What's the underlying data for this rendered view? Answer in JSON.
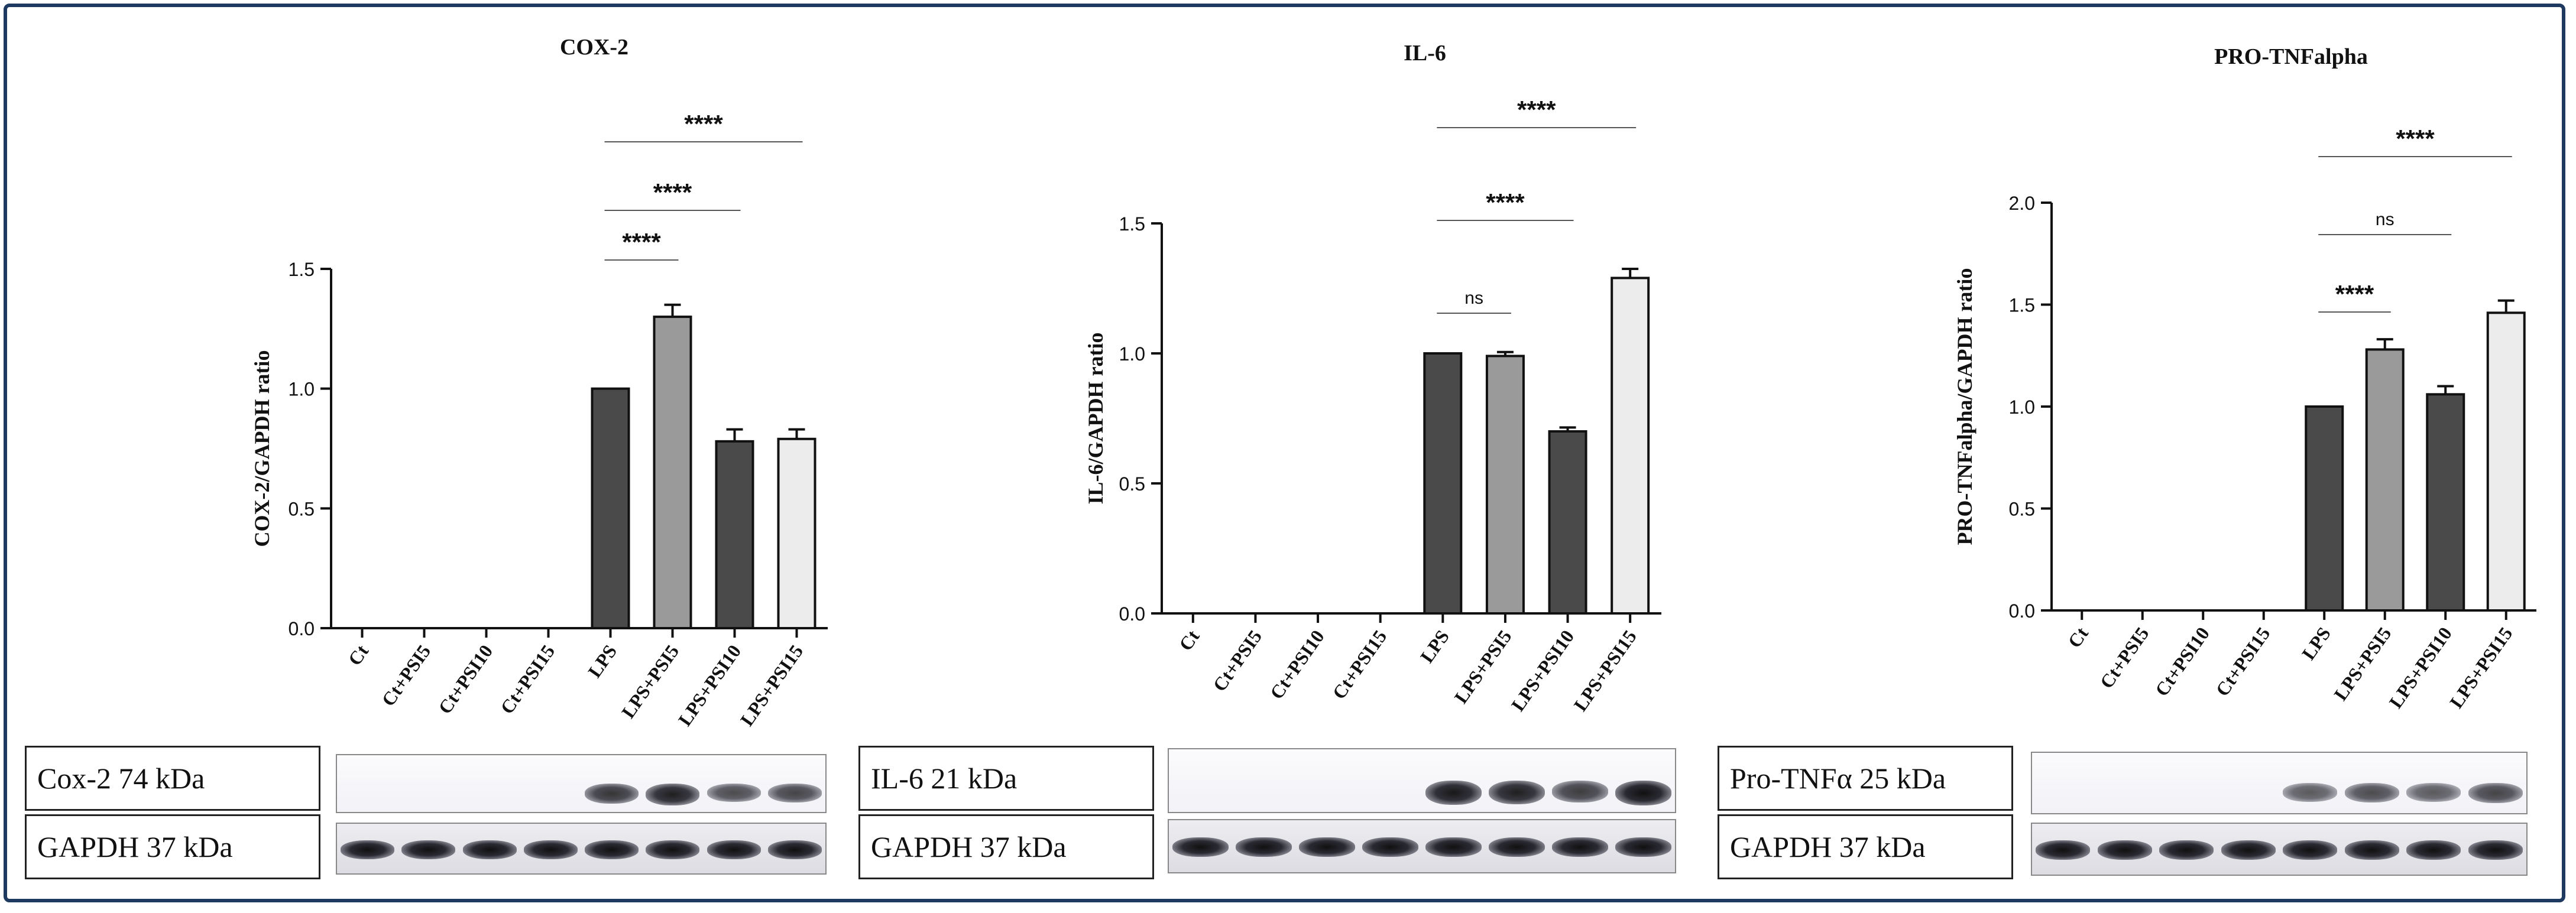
{
  "chart_data": [
    {
      "type": "bar",
      "title": "COX-2",
      "ylabel": "COX-2/GAPDH ratio",
      "xlabel": "",
      "categories": [
        "Ct",
        "Ct+PSI5",
        "Ct+PSI10",
        "Ct+PSI15",
        "LPS",
        "LPS+PSI5",
        "LPS+PSI10",
        "LPS+PSI15"
      ],
      "values": [
        0,
        0,
        0,
        0,
        1.0,
        1.3,
        0.78,
        0.79
      ],
      "errors": [
        0,
        0,
        0,
        0,
        0,
        0.05,
        0.05,
        0.04
      ],
      "bar_colors": [
        "#4a4a4a",
        "#9a9a9a",
        "#4a4a4a",
        "#ececec",
        "#4a4a4a",
        "#9a9a9a",
        "#4a4a4a",
        "#ececec"
      ],
      "ylim": [
        0,
        1.5
      ],
      "yticks": [
        "0.0",
        "0.5",
        "1.0",
        "1.5"
      ],
      "grid": false,
      "significance": [
        {
          "from": 4,
          "to": 5,
          "label": "****"
        },
        {
          "from": 4,
          "to": 6,
          "label": "****"
        },
        {
          "from": 4,
          "to": 7,
          "label": "****"
        }
      ]
    },
    {
      "type": "bar",
      "title": "IL-6",
      "ylabel": "IL-6/GAPDH ratio",
      "xlabel": "",
      "categories": [
        "Ct",
        "Ct+PSI5",
        "Ct+PSI10",
        "Ct+PSI15",
        "LPS",
        "LPS+PSI5",
        "LPS+PSI10",
        "LPS+PSI15"
      ],
      "values": [
        0,
        0,
        0,
        0,
        1.0,
        0.99,
        0.7,
        1.29
      ],
      "errors": [
        0,
        0,
        0,
        0,
        0,
        0.015,
        0.015,
        0.035
      ],
      "bar_colors": [
        "#4a4a4a",
        "#9a9a9a",
        "#4a4a4a",
        "#ececec",
        "#4a4a4a",
        "#9a9a9a",
        "#4a4a4a",
        "#ececec"
      ],
      "ylim": [
        0,
        1.5
      ],
      "yticks": [
        "0.0",
        "0.5",
        "1.0",
        "1.5"
      ],
      "grid": false,
      "significance": [
        {
          "from": 4,
          "to": 5,
          "label": "ns"
        },
        {
          "from": 4,
          "to": 6,
          "label": "****"
        },
        {
          "from": 4,
          "to": 7,
          "label": "****"
        }
      ]
    },
    {
      "type": "bar",
      "title": "PRO-TNFalpha",
      "ylabel": "PRO-TNFalpha/GAPDH ratio",
      "xlabel": "",
      "categories": [
        "Ct",
        "Ct+PSI5",
        "Ct+PSI10",
        "Ct+PSI15",
        "LPS",
        "LPS+PSI5",
        "LPS+PSI10",
        "LPS+PSI15"
      ],
      "values": [
        0,
        0,
        0,
        0,
        1.0,
        1.28,
        1.06,
        1.46
      ],
      "errors": [
        0,
        0,
        0,
        0,
        0,
        0.05,
        0.04,
        0.06
      ],
      "bar_colors": [
        "#4a4a4a",
        "#9a9a9a",
        "#4a4a4a",
        "#ececec",
        "#4a4a4a",
        "#9a9a9a",
        "#4a4a4a",
        "#ececec"
      ],
      "ylim": [
        0,
        2.0
      ],
      "yticks": [
        "0.0",
        "0.5",
        "1.0",
        "1.5",
        "2.0"
      ],
      "grid": false,
      "significance": [
        {
          "from": 4,
          "to": 5,
          "label": "****"
        },
        {
          "from": 4,
          "to": 6,
          "label": "ns"
        },
        {
          "from": 4,
          "to": 7,
          "label": "****"
        }
      ]
    }
  ],
  "blots": [
    {
      "target_label": "Cox-2 74 kDa",
      "loading_label": "GAPDH 37 kDa",
      "target_intensity": [
        0,
        0,
        0,
        0,
        0.75,
        0.9,
        0.6,
        0.65
      ]
    },
    {
      "target_label": "IL-6 21 kDa",
      "loading_label": "GAPDH 37 kDa",
      "target_intensity": [
        0,
        0,
        0,
        0,
        0.95,
        0.9,
        0.7,
        1.0
      ]
    },
    {
      "target_label": "Pro-TNFα 25 kDa",
      "loading_label": "GAPDH 37 kDa",
      "target_intensity": [
        0,
        0,
        0,
        0,
        0.5,
        0.6,
        0.5,
        0.65
      ]
    }
  ]
}
